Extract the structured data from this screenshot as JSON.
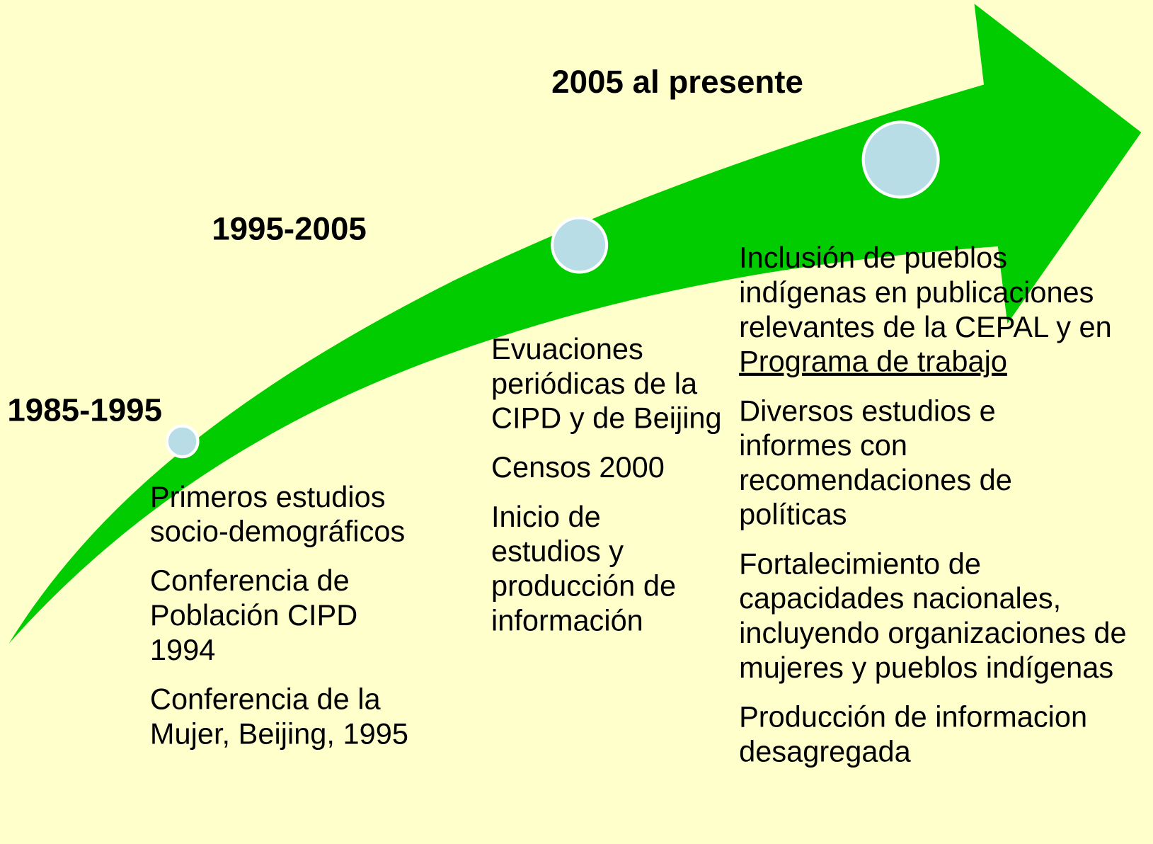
{
  "periods": [
    {
      "label": "1985-1995",
      "items": [
        "Primeros estudios socio-demográficos",
        "Conferencia de Población CIPD 1994",
        "Conferencia de la Mujer, Beijing, 1995"
      ]
    },
    {
      "label": "1995-2005",
      "items": [
        "Evuaciones periódicas de la CIPD y de Beijing",
        "Censos 2000",
        "Inicio de estudios y producción de información"
      ]
    },
    {
      "label": "2005 al presente",
      "items": [
        {
          "text": "Inclusión de pueblos indígenas en publicaciones relevantes de la CEPAL y en",
          "link": "Programa de trabajo"
        },
        "Diversos estudios e informes con recomendaciones de políticas",
        "Fortalecimiento de capacidades nacionales, incluyendo organizaciones de mujeres y pueblos indígenas",
        "Producción de informacion desagregada"
      ]
    }
  ]
}
